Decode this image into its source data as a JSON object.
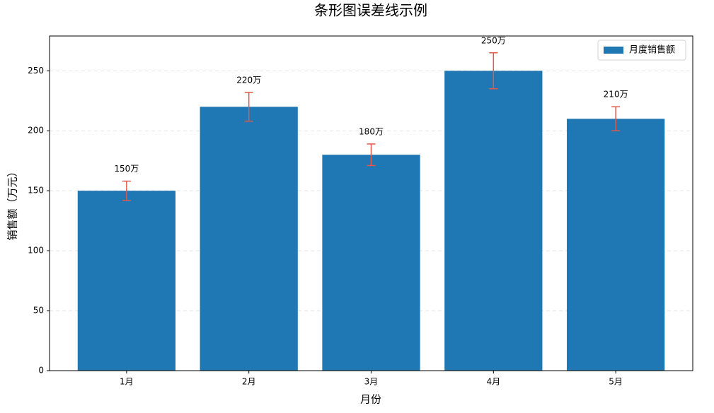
{
  "chart_data": {
    "type": "bar",
    "title": "条形图误差线示例",
    "x_label": "月份",
    "y_label": "销售额（万元）",
    "categories": [
      "1月",
      "2月",
      "3月",
      "4月",
      "5月"
    ],
    "series": [
      {
        "name": "月度销售额",
        "color": "#1f77b4",
        "values": [
          150,
          220,
          180,
          250,
          210
        ],
        "errors": [
          8,
          12,
          9,
          15,
          10
        ],
        "value_labels": [
          "150万",
          "220万",
          "180万",
          "250万",
          "210万"
        ]
      }
    ],
    "error_color": "#e05a4a",
    "ylim": [
      0,
      279
    ],
    "yticks": [
      0,
      50,
      100,
      150,
      200,
      250
    ],
    "grid": true,
    "legend": "upper right"
  }
}
